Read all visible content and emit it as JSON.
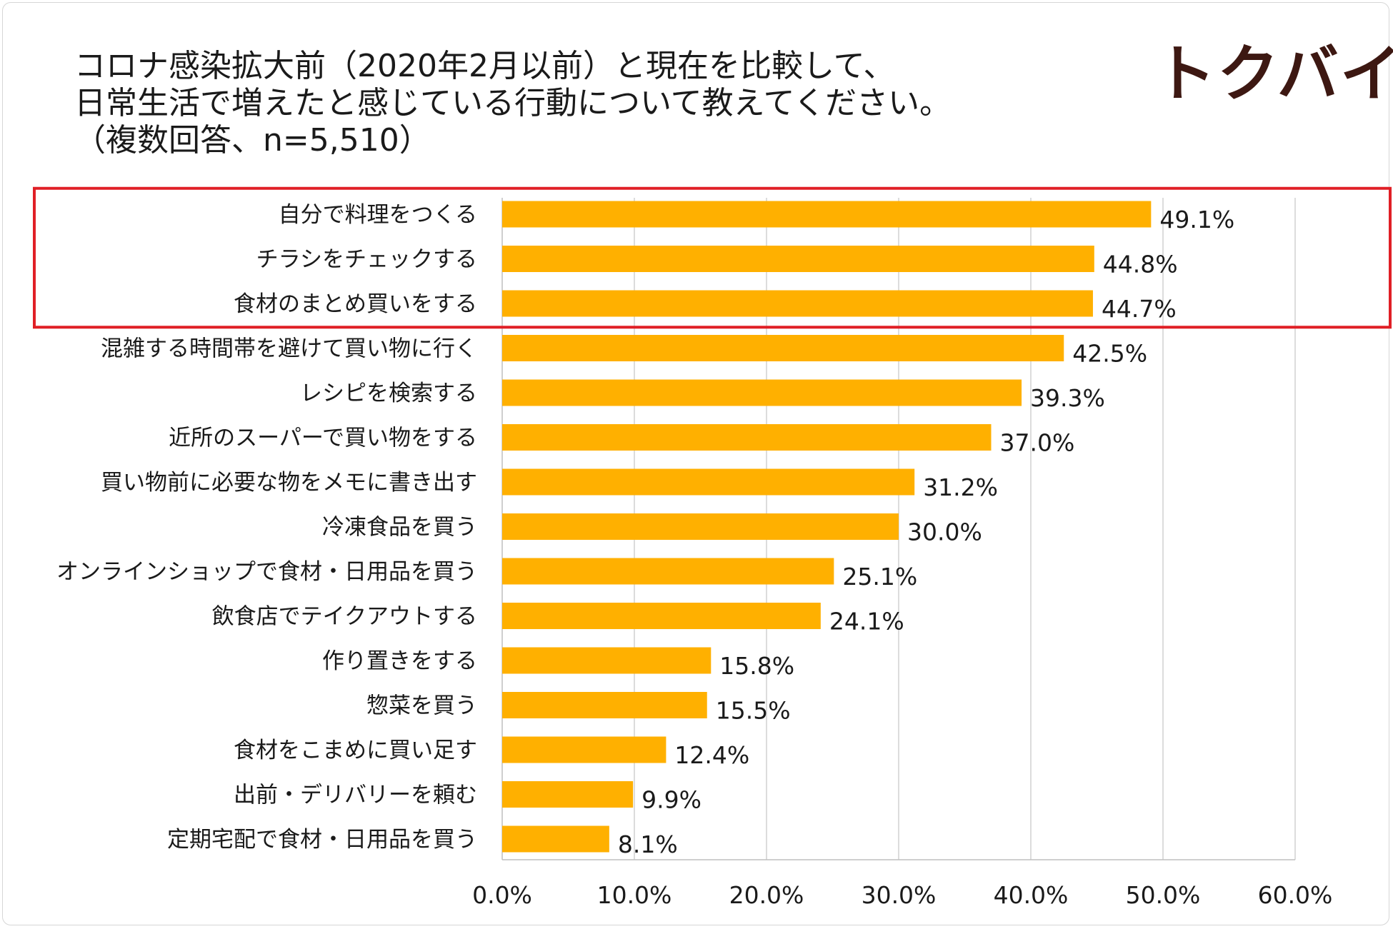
{
  "header": {
    "title_lines": [
      "コロナ感染拡大前（2020年2月以前）と現在を比較して、",
      "日常生活で増えたと感じている行動について教えてください。",
      "（複数回答、n=5,510）"
    ],
    "logo_text": "トクバイ"
  },
  "colors": {
    "bar": "#FFB000",
    "highlight_border": "#E01F26",
    "gridline": "#D0D0D0",
    "axis": "#BFBFBF",
    "logo": "#3D1812"
  },
  "chart_data": {
    "type": "bar",
    "orientation": "horizontal",
    "title": "コロナ感染拡大前（2020年2月以前）と現在を比較して、日常生活で増えたと感じている行動について教えてください。（複数回答、n=5,510）",
    "categories": [
      "自分で料理をつくる",
      "チラシをチェックする",
      "食材のまとめ買いをする",
      "混雑する時間帯を避けて買い物に行く",
      "レシピを検索する",
      "近所のスーパーで買い物をする",
      "買い物前に必要な物をメモに書き出す",
      "冷凍食品を買う",
      "オンラインショップで食材・日用品を買う",
      "飲食店でテイクアウトする",
      "作り置きをする",
      "惣菜を買う",
      "食材をこまめに買い足す",
      "出前・デリバリーを頼む",
      "定期宅配で食材・日用品を買う"
    ],
    "values": [
      49.1,
      44.8,
      44.7,
      42.5,
      39.3,
      37.0,
      31.2,
      30.0,
      25.1,
      24.1,
      15.8,
      15.5,
      12.4,
      9.9,
      8.1
    ],
    "value_labels": [
      "49.1%",
      "44.8%",
      "44.7%",
      "42.5%",
      "39.3%",
      "37.0%",
      "31.2%",
      "30.0%",
      "25.1%",
      "24.1%",
      "15.8%",
      "15.5%",
      "12.4%",
      "9.9%",
      "8.1%"
    ],
    "xlim": [
      0,
      60
    ],
    "ticks": [
      0,
      10,
      20,
      30,
      40,
      50,
      60
    ],
    "tick_labels": [
      "0.0%",
      "10.0%",
      "20.0%",
      "30.0%",
      "40.0%",
      "50.0%",
      "60.0%"
    ],
    "gridlines": true,
    "highlighted_count": 3,
    "legend": "none"
  }
}
